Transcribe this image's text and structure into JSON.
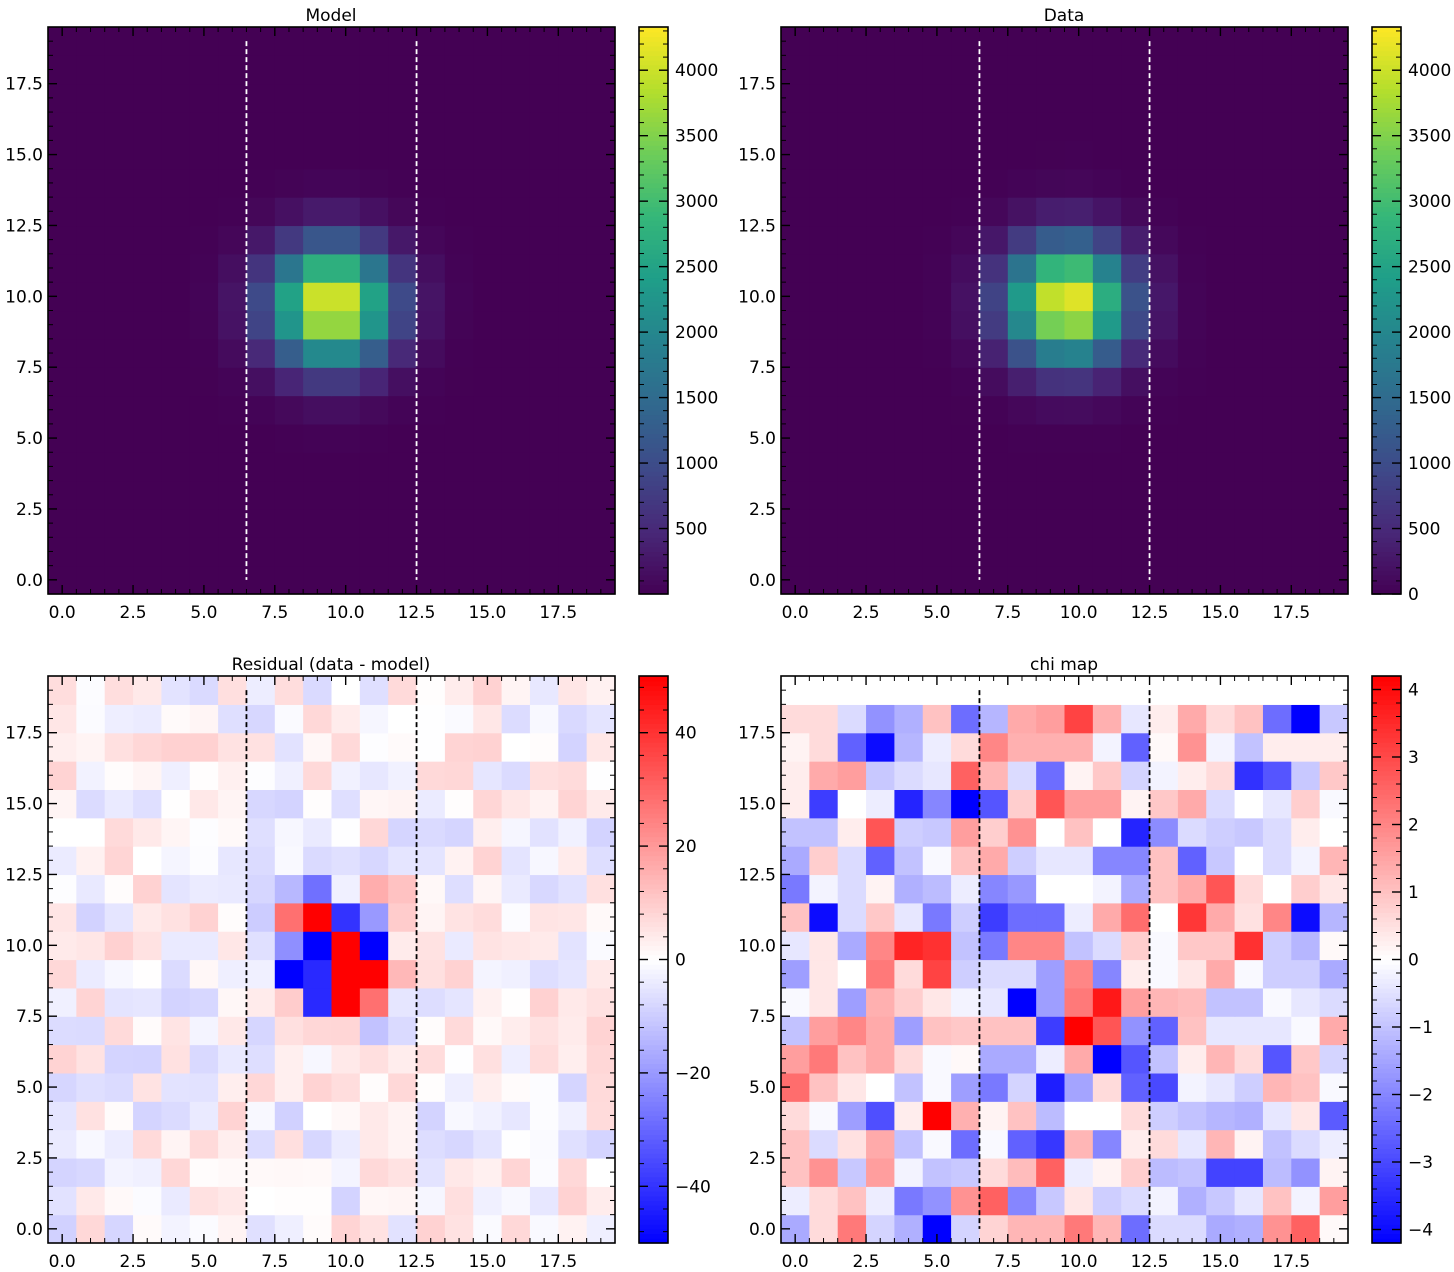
{
  "chart_data": [
    {
      "type": "heatmap",
      "title": "Model",
      "colormap": "viridis",
      "xlim": [
        -0.5,
        19.5
      ],
      "ylim": [
        -0.5,
        19.5
      ],
      "xticks": [
        "0.0",
        "2.5",
        "5.0",
        "7.5",
        "10.0",
        "12.5",
        "15.0",
        "17.5"
      ],
      "yticks": [
        "0.0",
        "2.5",
        "5.0",
        "7.5",
        "10.0",
        "12.5",
        "15.0",
        "17.5"
      ],
      "colorbar": {
        "range": [
          0,
          4330
        ],
        "ticks": [
          "500",
          "1000",
          "1500",
          "2000",
          "2500",
          "3000",
          "3500",
          "4000"
        ]
      },
      "dashed_lines_x": [
        6.5,
        12.5
      ],
      "dashed_line_color": "#ffffff",
      "source": {
        "center": [
          9.5,
          9.7
        ],
        "amplitude": 4330,
        "sigma": 1.45
      }
    },
    {
      "type": "heatmap",
      "title": "Data",
      "colormap": "viridis",
      "xlim": [
        -0.5,
        19.5
      ],
      "ylim": [
        -0.5,
        19.5
      ],
      "xticks": [
        "0.0",
        "2.5",
        "5.0",
        "7.5",
        "10.0",
        "12.5",
        "15.0",
        "17.5"
      ],
      "yticks": [
        "0.0",
        "2.5",
        "5.0",
        "7.5",
        "10.0",
        "12.5",
        "15.0",
        "17.5"
      ],
      "colorbar": {
        "range": [
          0,
          4330
        ],
        "ticks": [
          "0",
          "500",
          "1000",
          "1500",
          "2000",
          "2500",
          "3000",
          "3500",
          "4000"
        ]
      },
      "dashed_lines_x": [
        6.5,
        12.5
      ],
      "dashed_line_color": "#ffffff",
      "source": {
        "center": [
          9.6,
          9.8
        ],
        "amplitude": 4330,
        "sigma": 1.45
      }
    },
    {
      "type": "heatmap",
      "title": "Residual (data - model)",
      "colormap": "bwr",
      "xlim": [
        -0.5,
        19.5
      ],
      "ylim": [
        -0.5,
        19.5
      ],
      "xticks": [
        "0.0",
        "2.5",
        "5.0",
        "7.5",
        "10.0",
        "12.5",
        "15.0",
        "17.5"
      ],
      "yticks": [
        "0.0",
        "2.5",
        "5.0",
        "7.5",
        "10.0",
        "12.5",
        "15.0",
        "17.5"
      ],
      "colorbar": {
        "range": [
          -50,
          50
        ],
        "ticks": [
          "−40",
          "−20",
          "0",
          "20",
          "40"
        ]
      },
      "dashed_lines_x": [
        6.5,
        12.5
      ],
      "dashed_line_color": "#000000",
      "residual_core": [
        {
          "x": 7,
          "y": 11,
          "v": -10
        },
        {
          "x": 8,
          "y": 11,
          "v": 28
        },
        {
          "x": 9,
          "y": 11,
          "v": 50
        },
        {
          "x": 10,
          "y": 11,
          "v": -40
        },
        {
          "x": 11,
          "y": 11,
          "v": -20
        },
        {
          "x": 12,
          "y": 11,
          "v": 10
        },
        {
          "x": 7,
          "y": 10,
          "v": -6
        },
        {
          "x": 8,
          "y": 10,
          "v": -22
        },
        {
          "x": 9,
          "y": 10,
          "v": -50
        },
        {
          "x": 10,
          "y": 10,
          "v": 50
        },
        {
          "x": 11,
          "y": 10,
          "v": -50
        },
        {
          "x": 12,
          "y": 10,
          "v": 4
        },
        {
          "x": 7,
          "y": 9,
          "v": -3
        },
        {
          "x": 8,
          "y": 9,
          "v": -50
        },
        {
          "x": 9,
          "y": 9,
          "v": -42
        },
        {
          "x": 10,
          "y": 9,
          "v": 50
        },
        {
          "x": 11,
          "y": 9,
          "v": 50
        },
        {
          "x": 12,
          "y": 9,
          "v": 14
        },
        {
          "x": 7,
          "y": 8,
          "v": 4
        },
        {
          "x": 8,
          "y": 8,
          "v": 10
        },
        {
          "x": 9,
          "y": 8,
          "v": -42
        },
        {
          "x": 10,
          "y": 8,
          "v": 50
        },
        {
          "x": 11,
          "y": 8,
          "v": 28
        },
        {
          "x": 12,
          "y": 8,
          "v": -5
        },
        {
          "x": 8,
          "y": 12,
          "v": -14
        },
        {
          "x": 9,
          "y": 12,
          "v": -28
        },
        {
          "x": 10,
          "y": 12,
          "v": -3
        },
        {
          "x": 11,
          "y": 12,
          "v": 16
        },
        {
          "x": 12,
          "y": 12,
          "v": 12
        },
        {
          "x": 10,
          "y": 7,
          "v": 8
        },
        {
          "x": 11,
          "y": 7,
          "v": -12
        }
      ]
    },
    {
      "type": "heatmap",
      "title": "chi map",
      "colormap": "bwr",
      "xlim": [
        -0.5,
        19.5
      ],
      "ylim": [
        -0.5,
        19.5
      ],
      "xticks": [
        "0.0",
        "2.5",
        "5.0",
        "7.5",
        "10.0",
        "12.5",
        "15.0",
        "17.5"
      ],
      "yticks": [
        "0.0",
        "2.5",
        "5.0",
        "7.5",
        "10.0",
        "12.5",
        "15.0",
        "17.5"
      ],
      "colorbar": {
        "range": [
          -4.2,
          4.2
        ],
        "ticks": [
          "−4",
          "−3",
          "−2",
          "−1",
          "0",
          "1",
          "2",
          "3",
          "4"
        ]
      },
      "dashed_lines_x": [
        6.5,
        12.5
      ],
      "dashed_line_color": "#000000",
      "values": [
        [
          -1.4,
          0.6,
          2.2,
          -0.7,
          -1.3,
          -4.2,
          -0.7,
          0.7,
          1.2,
          1.2,
          2.2,
          1.2,
          -2.4,
          -0.6,
          -0.6,
          -1.4,
          -1.3,
          1.8,
          2.6,
          0.1
        ],
        [
          -0.3,
          0.6,
          1.0,
          -0.3,
          -2.2,
          -1.8,
          1.8,
          2.6,
          -2.0,
          -0.9,
          0.4,
          -0.8,
          -0.6,
          -0.2,
          -1.3,
          -0.9,
          -0.4,
          1.0,
          -0.2,
          1.6
        ],
        [
          1.0,
          1.8,
          -0.9,
          1.6,
          -0.2,
          -1.0,
          -0.9,
          0.6,
          1.1,
          2.6,
          -0.3,
          0.2,
          0.8,
          -1.1,
          -1.0,
          -3.1,
          -3.1,
          -1.1,
          -1.8,
          0.2
        ],
        [
          1.0,
          -0.6,
          0.5,
          1.4,
          -1.0,
          -0.1,
          -2.4,
          -0.1,
          -2.6,
          -3.3,
          1.2,
          -2.0,
          0.3,
          0.6,
          -0.4,
          1.2,
          0.2,
          -1.0,
          -0.6,
          -0.3
        ],
        [
          0.6,
          -0.1,
          -1.6,
          -2.9,
          0.3,
          4.2,
          1.3,
          0.2,
          1.0,
          -1.1,
          0.0,
          0.0,
          0.6,
          -0.8,
          -1.0,
          -1.2,
          -1.3,
          -0.4,
          0.4,
          -2.7
        ],
        [
          2.4,
          1.0,
          0.4,
          0.0,
          -1.0,
          -0.1,
          -1.6,
          -2.2,
          -0.7,
          -3.7,
          -1.5,
          0.6,
          -2.6,
          -3.0,
          -0.2,
          -0.4,
          -0.8,
          1.2,
          1.0,
          -0.1
        ],
        [
          1.6,
          2.2,
          1.0,
          1.4,
          0.6,
          -0.1,
          0.1,
          -1.4,
          -1.4,
          -0.3,
          1.4,
          -4.2,
          -2.8,
          -1.0,
          0.3,
          1.2,
          0.6,
          -2.8,
          0.9,
          -0.7
        ],
        [
          -1.0,
          1.6,
          2.0,
          1.4,
          -1.6,
          1.0,
          0.9,
          1.0,
          1.0,
          -3.2,
          4.2,
          2.8,
          -1.8,
          -2.6,
          1.0,
          -0.4,
          -0.4,
          -0.4,
          -0.1,
          1.4
        ],
        [
          -0.1,
          0.4,
          -1.6,
          1.3,
          0.8,
          0.4,
          -0.2,
          -0.4,
          -4.2,
          -1.6,
          2.2,
          3.8,
          1.6,
          1.2,
          1.1,
          -1.0,
          -1.0,
          -0.1,
          -0.4,
          -0.6
        ],
        [
          -1.6,
          0.4,
          0.0,
          2.2,
          0.6,
          3.1,
          -0.8,
          -0.6,
          -0.6,
          -1.6,
          2.0,
          -2.0,
          0.3,
          -0.1,
          0.4,
          1.4,
          -0.1,
          -0.8,
          -0.8,
          -1.4
        ],
        [
          -0.4,
          0.4,
          -1.4,
          2.0,
          3.6,
          3.4,
          -1.0,
          -2.2,
          2.0,
          2.0,
          -1.0,
          -0.6,
          0.8,
          -0.1,
          0.9,
          0.9,
          3.4,
          -0.8,
          -1.2,
          0.1
        ],
        [
          1.0,
          -4.0,
          -0.6,
          0.9,
          -0.4,
          -2.2,
          -0.8,
          -3.2,
          -2.4,
          -2.4,
          -0.3,
          1.4,
          2.4,
          0.0,
          3.3,
          1.4,
          0.5,
          2.0,
          -4.0,
          -1.2
        ],
        [
          -2.2,
          -0.2,
          -0.6,
          0.2,
          -1.3,
          -1.1,
          -0.3,
          -2.0,
          -1.7,
          0.0,
          0.0,
          -0.2,
          -1.4,
          1.0,
          1.4,
          2.8,
          0.6,
          0.0,
          0.8,
          0.4
        ],
        [
          -1.4,
          0.8,
          -0.6,
          -2.6,
          -1.0,
          -0.1,
          1.0,
          1.4,
          -0.8,
          -0.4,
          -0.4,
          -2.0,
          -2.0,
          1.0,
          -2.6,
          -0.9,
          0.0,
          -0.6,
          -0.2,
          1.2
        ],
        [
          -1.0,
          -1.0,
          0.3,
          2.8,
          -0.8,
          -0.9,
          1.6,
          0.8,
          1.8,
          0.0,
          1.0,
          0.0,
          -3.6,
          -1.9,
          -0.6,
          -0.8,
          -0.9,
          -0.6,
          0.3,
          0.0
        ],
        [
          0.3,
          -3.2,
          0.0,
          -0.3,
          -3.6,
          -2.0,
          -4.2,
          -2.8,
          0.8,
          2.8,
          1.6,
          1.6,
          0.2,
          0.9,
          1.4,
          -0.6,
          0.0,
          -0.4,
          0.8,
          -0.1
        ],
        [
          0.3,
          1.4,
          1.6,
          -0.9,
          -0.6,
          -0.4,
          2.6,
          1.2,
          -0.6,
          -2.4,
          0.2,
          0.9,
          -0.7,
          -0.2,
          0.3,
          0.6,
          -3.4,
          -2.8,
          -0.9,
          0.9
        ],
        [
          0.2,
          0.6,
          -2.6,
          -4.0,
          -1.2,
          -0.3,
          0.6,
          2.0,
          1.3,
          1.3,
          1.3,
          -0.2,
          -2.6,
          0.1,
          1.8,
          -0.2,
          -1.0,
          0.3,
          0.3,
          0.3
        ],
        [
          0.6,
          0.6,
          -0.6,
          -1.8,
          -1.3,
          1.0,
          -2.4,
          -1.2,
          1.4,
          1.6,
          3.1,
          1.3,
          -0.4,
          0.3,
          1.4,
          0.6,
          1.0,
          -2.4,
          -4.2,
          -0.9
        ],
        [
          0.0,
          0.0,
          0.0,
          0.0,
          0.0,
          0.0,
          0.0,
          0.0,
          0.0,
          0.0,
          0.0,
          0.0,
          0.0,
          0.0,
          0.0,
          0.0,
          0.0,
          0.0,
          0.0,
          0.0
        ]
      ]
    }
  ]
}
